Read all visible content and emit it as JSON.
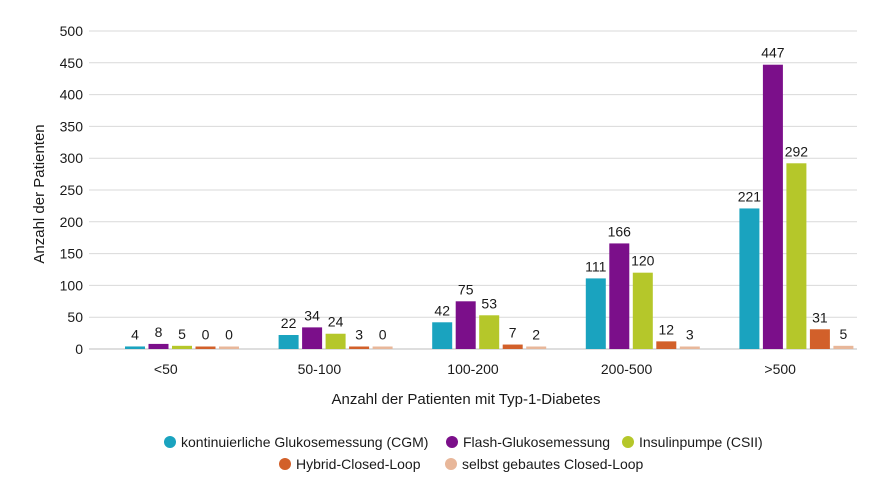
{
  "chart_data": {
    "type": "bar",
    "title": "",
    "xlabel": "Anzahl der Patienten mit Typ-1-Diabetes",
    "ylabel": "Anzahl der Patienten",
    "ylim": [
      0,
      500
    ],
    "yticks": [
      "0",
      "50",
      "100",
      "150",
      "200",
      "250",
      "300",
      "350",
      "400",
      "450",
      "500"
    ],
    "grid": true,
    "legend_position": "bottom",
    "categories": [
      "<50",
      "50-100",
      "100-200",
      "200-500",
      ">500"
    ],
    "series": [
      {
        "name": "kontinuierliche Glukosemessung (CGM)",
        "color": "#1aa3bf",
        "values": [
          4,
          22,
          42,
          111,
          221
        ]
      },
      {
        "name": "Flash-Glukosemessung",
        "color": "#7b0f8a",
        "values": [
          8,
          34,
          75,
          166,
          447
        ]
      },
      {
        "name": "Insulinpumpe (CSII)",
        "color": "#b5c72a",
        "values": [
          5,
          24,
          53,
          120,
          292
        ]
      },
      {
        "name": "Hybrid-Closed-Loop",
        "color": "#d2602a",
        "values": [
          0,
          3,
          7,
          12,
          31
        ]
      },
      {
        "name": "selbst gebautes Closed-Loop",
        "color": "#e8b79a",
        "values": [
          0,
          0,
          2,
          3,
          5
        ]
      }
    ]
  }
}
